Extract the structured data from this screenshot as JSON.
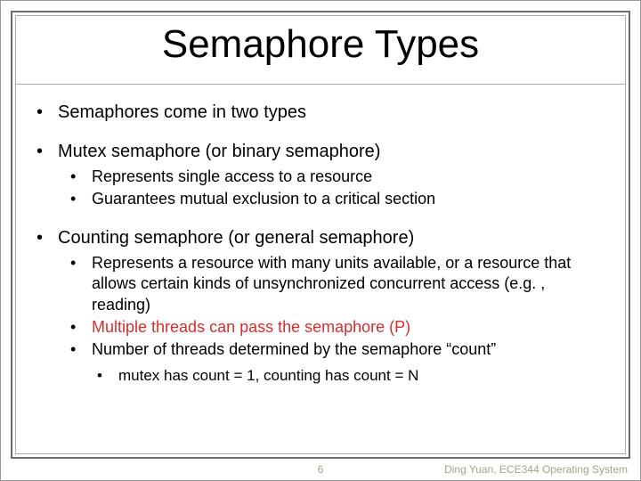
{
  "colors": {
    "background": "#ffffff",
    "frame_outer": "#6b6b6b",
    "frame_inner": "#aaaaaa",
    "text": "#000000",
    "highlight": "#d62e2e",
    "footer": "#a7a18b"
  },
  "typography": {
    "family": "Arial",
    "title_size": 44,
    "lvl1_size": 20,
    "lvl2_size": 18,
    "lvl3_size": 17,
    "footer_size": 12
  },
  "title": "Semaphore Types",
  "bullets": {
    "b1": "Semaphores come in two types",
    "b2": "Mutex semaphore (or binary semaphore)",
    "b2_1": "Represents single access to a resource",
    "b2_2": "Guarantees mutual exclusion to a critical section",
    "b3": "Counting semaphore (or general semaphore)",
    "b3_1": "Represents a resource with many units available, or a resource that allows certain kinds of unsynchronized concurrent access (e.g. , reading)",
    "b3_2": "Multiple threads can pass the semaphore (P)",
    "b3_3": "Number of threads determined by the semaphore “count”",
    "b3_3_1": "mutex has count = 1, counting has count = N"
  },
  "footer": {
    "page": "6",
    "attribution": "Ding Yuan, ECE344 Operating System"
  }
}
